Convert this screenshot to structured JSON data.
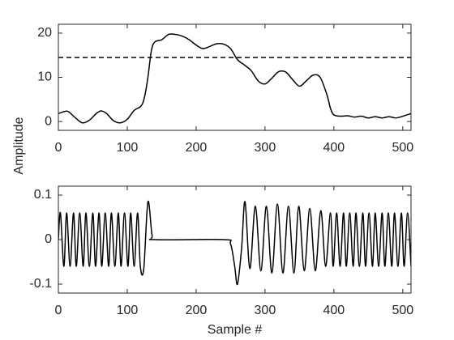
{
  "chart_data": [
    {
      "type": "line",
      "y_label": "Amplitude",
      "x": [
        0,
        10,
        15,
        25,
        35,
        45,
        55,
        62,
        70,
        80,
        90,
        100,
        110,
        120,
        125,
        130,
        135,
        140,
        150,
        160,
        170,
        180,
        190,
        200,
        210,
        220,
        230,
        240,
        250,
        260,
        270,
        280,
        290,
        300,
        310,
        320,
        330,
        340,
        350,
        360,
        370,
        380,
        390,
        395,
        400,
        410,
        420,
        430,
        440,
        450,
        460,
        470,
        480,
        490,
        500,
        512
      ],
      "series": [
        {
          "color": "#000000",
          "values": [
            1.8,
            2.3,
            2.2,
            0.8,
            -0.3,
            0.3,
            1.8,
            2.4,
            1.8,
            0.2,
            -0.3,
            0.5,
            2.5,
            3.5,
            5.5,
            10,
            16,
            18,
            18.5,
            19.7,
            19.7,
            19.3,
            18.5,
            17.3,
            16.5,
            17,
            17.6,
            17.5,
            16.5,
            14,
            12.8,
            11.5,
            9.2,
            8.5,
            9.8,
            11.3,
            11.2,
            9.5,
            8,
            9.2,
            10.5,
            10,
            6,
            3,
            1.5,
            1.2,
            1.3,
            1,
            1.2,
            0.8,
            1.1,
            0.8,
            1.1,
            0.8,
            1.2,
            1.8
          ]
        }
      ],
      "reference_line": 14.5,
      "xlim": [
        0,
        512
      ],
      "ylim": [
        -2,
        22
      ],
      "xticks": [
        0,
        100,
        200,
        300,
        400,
        500
      ],
      "yticks": [
        0,
        10,
        20
      ]
    },
    {
      "type": "line",
      "x_label": "Sample #",
      "x": [
        0,
        3,
        8,
        12,
        17,
        22,
        26,
        31,
        36,
        40,
        45,
        50,
        54,
        59,
        63,
        68,
        73,
        77,
        82,
        87,
        91,
        96,
        101,
        105,
        110,
        115,
        119,
        124,
        130,
        136,
        141,
        240,
        250,
        256,
        260,
        266,
        271,
        278,
        286,
        294,
        302,
        310,
        318,
        326,
        334,
        342,
        349,
        357,
        365,
        373,
        381,
        388,
        395,
        399,
        404,
        409,
        414,
        418,
        423,
        428,
        432,
        437,
        442,
        446,
        451,
        456,
        460,
        465,
        470,
        474,
        479,
        484,
        488,
        493,
        498,
        502,
        507,
        512
      ],
      "series": [
        {
          "color": "#000000",
          "values": [
            0,
            0.06,
            -0.06,
            0.06,
            -0.06,
            0.06,
            -0.06,
            0.06,
            -0.06,
            0.06,
            -0.06,
            0.06,
            -0.06,
            0.06,
            -0.06,
            0.06,
            -0.06,
            0.06,
            -0.06,
            0.06,
            -0.06,
            0.06,
            -0.06,
            0.06,
            -0.06,
            0.06,
            -0.06,
            -0.065,
            0.085,
            0.01,
            0,
            0,
            -0.01,
            -0.06,
            -0.1,
            -0.02,
            0.085,
            -0.065,
            0.075,
            -0.07,
            0.075,
            -0.075,
            0.08,
            -0.075,
            0.075,
            -0.075,
            0.075,
            -0.07,
            0.07,
            -0.07,
            0.065,
            -0.06,
            0.06,
            -0.06,
            0.06,
            -0.06,
            0.06,
            -0.06,
            0.06,
            -0.06,
            0.06,
            -0.06,
            0.06,
            -0.06,
            0.06,
            -0.06,
            0.06,
            -0.06,
            0.06,
            -0.06,
            0.06,
            -0.06,
            0.06,
            -0.06,
            0.06,
            -0.06,
            0.06,
            -0.06
          ]
        }
      ],
      "xlim": [
        0,
        512
      ],
      "ylim": [
        -0.12,
        0.12
      ],
      "xticks": [
        0,
        100,
        200,
        300,
        400,
        500
      ],
      "yticks": [
        -0.1,
        0,
        0.1
      ]
    }
  ]
}
